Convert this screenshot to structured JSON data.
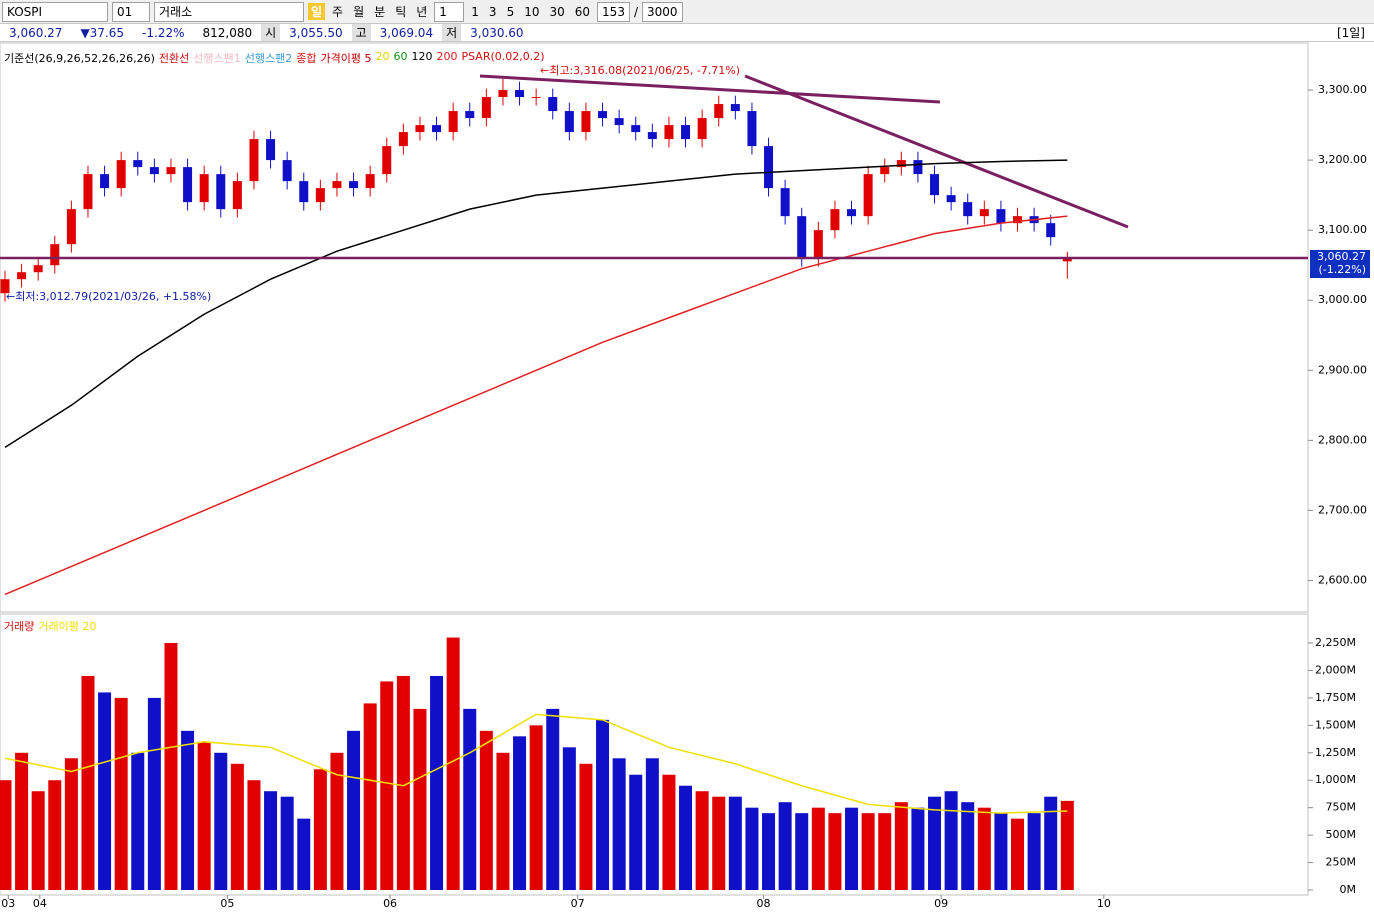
{
  "toolbar": {
    "code": "KOSPI",
    "market_code": "01",
    "market": "거래소",
    "periods": [
      "일",
      "주",
      "월",
      "분",
      "틱",
      "년"
    ],
    "period_n": "1",
    "quick": [
      "1",
      "3",
      "5",
      "10",
      "30",
      "60"
    ],
    "count": "153",
    "sep": "/",
    "max": "3000"
  },
  "info": {
    "price": "3,060.27",
    "change": "▼37.65",
    "rate": "-1.22%",
    "volume": "812,080",
    "open_label": "시",
    "open": "3,055.50",
    "high_label": "고",
    "high": "3,069.04",
    "low_label": "저",
    "low": "3,030.60",
    "span": "[1일]"
  },
  "chart_data": [
    {
      "type": "candlestick",
      "legend": [
        {
          "name": "기준선(26,9,26,52,26,26,26)",
          "color": "#000000"
        },
        {
          "name": "전환선",
          "color": "#d01010"
        },
        {
          "name": "선행스팬1",
          "color": "#f4b8c0"
        },
        {
          "name": "선행스팬2",
          "color": "#3a9ad8"
        },
        {
          "name": "종합",
          "color": "#d01010"
        },
        {
          "name": "가격이평 5",
          "color": "#c00000"
        },
        {
          "name": "20",
          "color": "#e8d000"
        },
        {
          "name": "60",
          "color": "#109010"
        },
        {
          "name": "120",
          "color": "#000000"
        },
        {
          "name": "200",
          "color": "#e02020"
        },
        {
          "name": "PSAR(0.02,0.2)",
          "color": "#d01010"
        }
      ],
      "xlim": [
        -0.3,
        78.5
      ],
      "xticks": [
        {
          "value": 0.2,
          "label": "03"
        },
        {
          "value": 2.1,
          "label": "04"
        },
        {
          "value": 13.4,
          "label": "05"
        },
        {
          "value": 23.2,
          "label": "06"
        },
        {
          "value": 34.5,
          "label": "07"
        },
        {
          "value": 45.7,
          "label": "08"
        },
        {
          "value": 56.4,
          "label": "09"
        },
        {
          "value": 66.2,
          "label": "10"
        }
      ],
      "ylim": [
        2555,
        3360
      ],
      "yticks": [
        {
          "value": 2600,
          "label": "2,600.00"
        },
        {
          "value": 2700,
          "label": "2,700.00"
        },
        {
          "value": 2800,
          "label": "2,800.00"
        },
        {
          "value": 2900,
          "label": "2,900.00"
        },
        {
          "value": 3000,
          "label": "3,000.00"
        },
        {
          "value": 3100,
          "label": "3,100.00"
        },
        {
          "value": 3200,
          "label": "3,200.00"
        },
        {
          "value": 3300,
          "label": "3,300.00"
        }
      ],
      "open": [
        3010,
        3030,
        3040,
        3050,
        3080,
        3130,
        3180,
        3160,
        3200,
        3190,
        3180,
        3190,
        3140,
        3180,
        3130,
        3170,
        3230,
        3200,
        3170,
        3140,
        3160,
        3170,
        3160,
        3180,
        3220,
        3240,
        3250,
        3240,
        3270,
        3260,
        3290,
        3300,
        3290,
        3290,
        3270,
        3240,
        3270,
        3260,
        3250,
        3240,
        3230,
        3250,
        3230,
        3260,
        3280,
        3270,
        3220,
        3160,
        3120,
        3060,
        3100,
        3130,
        3120,
        3180,
        3190,
        3200,
        3180,
        3150,
        3140,
        3120,
        3130,
        3110,
        3120,
        3110,
        3055.5
      ],
      "high": [
        3042,
        3052,
        3062,
        3092,
        3142,
        3192,
        3192,
        3212,
        3212,
        3202,
        3202,
        3202,
        3192,
        3192,
        3182,
        3242,
        3242,
        3212,
        3182,
        3172,
        3182,
        3182,
        3192,
        3232,
        3252,
        3262,
        3262,
        3282,
        3282,
        3302,
        3316.08,
        3312,
        3302,
        3302,
        3282,
        3282,
        3282,
        3272,
        3262,
        3252,
        3262,
        3262,
        3272,
        3292,
        3292,
        3282,
        3232,
        3172,
        3132,
        3112,
        3142,
        3142,
        3192,
        3202,
        3212,
        3212,
        3192,
        3162,
        3152,
        3142,
        3142,
        3132,
        3132,
        3122,
        3069.04
      ],
      "low": [
        2998,
        3018,
        3028,
        3038,
        3068,
        3118,
        3148,
        3148,
        3178,
        3168,
        3168,
        3128,
        3128,
        3118,
        3118,
        3158,
        3188,
        3158,
        3128,
        3128,
        3148,
        3148,
        3148,
        3168,
        3208,
        3228,
        3228,
        3228,
        3248,
        3248,
        3278,
        3278,
        3278,
        3258,
        3228,
        3228,
        3248,
        3238,
        3228,
        3218,
        3218,
        3218,
        3218,
        3248,
        3258,
        3208,
        3148,
        3108,
        3048,
        3048,
        3088,
        3108,
        3108,
        3168,
        3178,
        3168,
        3138,
        3128,
        3108,
        3108,
        3098,
        3098,
        3098,
        3078,
        3030.6
      ],
      "close": [
        3030,
        3040,
        3050,
        3080,
        3130,
        3180,
        3160,
        3200,
        3190,
        3180,
        3190,
        3140,
        3180,
        3130,
        3170,
        3230,
        3200,
        3170,
        3140,
        3160,
        3170,
        3160,
        3180,
        3220,
        3240,
        3250,
        3240,
        3270,
        3260,
        3290,
        3300,
        3290,
        3290,
        3270,
        3240,
        3270,
        3260,
        3250,
        3240,
        3230,
        3250,
        3230,
        3260,
        3280,
        3270,
        3220,
        3160,
        3120,
        3060,
        3100,
        3130,
        3120,
        3180,
        3190,
        3200,
        3180,
        3150,
        3140,
        3120,
        3130,
        3110,
        3120,
        3110,
        3090,
        3060.27
      ],
      "up_color": "#e00000",
      "down_color": "#1010c8",
      "series": [
        {
          "name": "120",
          "color": "#000000",
          "x": [
            0,
            4,
            8,
            12,
            16,
            20,
            24,
            28,
            32,
            36,
            40,
            44,
            48,
            52,
            56,
            60,
            64
          ],
          "values": [
            2790,
            2850,
            2920,
            2980,
            3030,
            3070,
            3100,
            3130,
            3150,
            3160,
            3170,
            3180,
            3185,
            3190,
            3195,
            3198,
            3200
          ]
        },
        {
          "name": "200",
          "color": "#e02020",
          "x": [
            0,
            4,
            8,
            12,
            16,
            20,
            24,
            28,
            32,
            36,
            40,
            44,
            48,
            52,
            56,
            60,
            64
          ],
          "values": [
            2580,
            2620,
            2660,
            2700,
            2740,
            2780,
            2820,
            2860,
            2900,
            2940,
            2975,
            3010,
            3045,
            3070,
            3095,
            3110,
            3120
          ]
        }
      ],
      "last": {
        "value": 3060.27,
        "label": "3,060.27",
        "change": "(-1.22%)"
      },
      "annotations": [
        "←최고:3,316.08(2021/06/25, -7.71%)",
        "←최저:3,012.79(2021/03/26, +1.58%)"
      ]
    },
    {
      "type": "bar",
      "legend": [
        {
          "name": "거래량",
          "color": "#d01010"
        },
        {
          "name": "거래이평 20",
          "color": "#f0e000"
        }
      ],
      "ylim": [
        0,
        2478
      ],
      "yticks": [
        {
          "value": 0,
          "label": "0M"
        },
        {
          "value": 250,
          "label": "250M"
        },
        {
          "value": 500,
          "label": "500M"
        },
        {
          "value": 750,
          "label": "750M"
        },
        {
          "value": 1000,
          "label": "1,000M"
        },
        {
          "value": 1250,
          "label": "1,250M"
        },
        {
          "value": 1500,
          "label": "1,500M"
        },
        {
          "value": 1750,
          "label": "1,750M"
        },
        {
          "value": 2000,
          "label": "2,000M"
        },
        {
          "value": 2250,
          "label": "2,250M"
        }
      ],
      "values": [
        1000,
        1250,
        900,
        1000,
        1200,
        1950,
        1800,
        1750,
        1250,
        1750,
        2250,
        1450,
        1350,
        1250,
        1150,
        1000,
        900,
        850,
        650,
        1100,
        1250,
        1450,
        1700,
        1900,
        1950,
        1650,
        1950,
        2300,
        1650,
        1450,
        1250,
        1400,
        1500,
        1650,
        1300,
        1150,
        1550,
        1200,
        1050,
        1200,
        1050,
        950,
        900,
        850,
        850,
        750,
        700,
        800,
        700,
        750,
        700,
        750,
        700,
        700,
        800,
        750,
        850,
        900,
        800,
        750,
        700,
        650,
        700,
        850,
        812.08
      ],
      "series": [
        {
          "name": "거래이평 20",
          "color": "#f0e000",
          "x": [
            0,
            4,
            8,
            12,
            16,
            20,
            24,
            28,
            32,
            36,
            40,
            44,
            48,
            52,
            56,
            60,
            64
          ],
          "values": [
            1200,
            1080,
            1250,
            1350,
            1300,
            1050,
            950,
            1250,
            1600,
            1550,
            1300,
            1150,
            950,
            780,
            730,
            700,
            720
          ]
        }
      ]
    }
  ]
}
